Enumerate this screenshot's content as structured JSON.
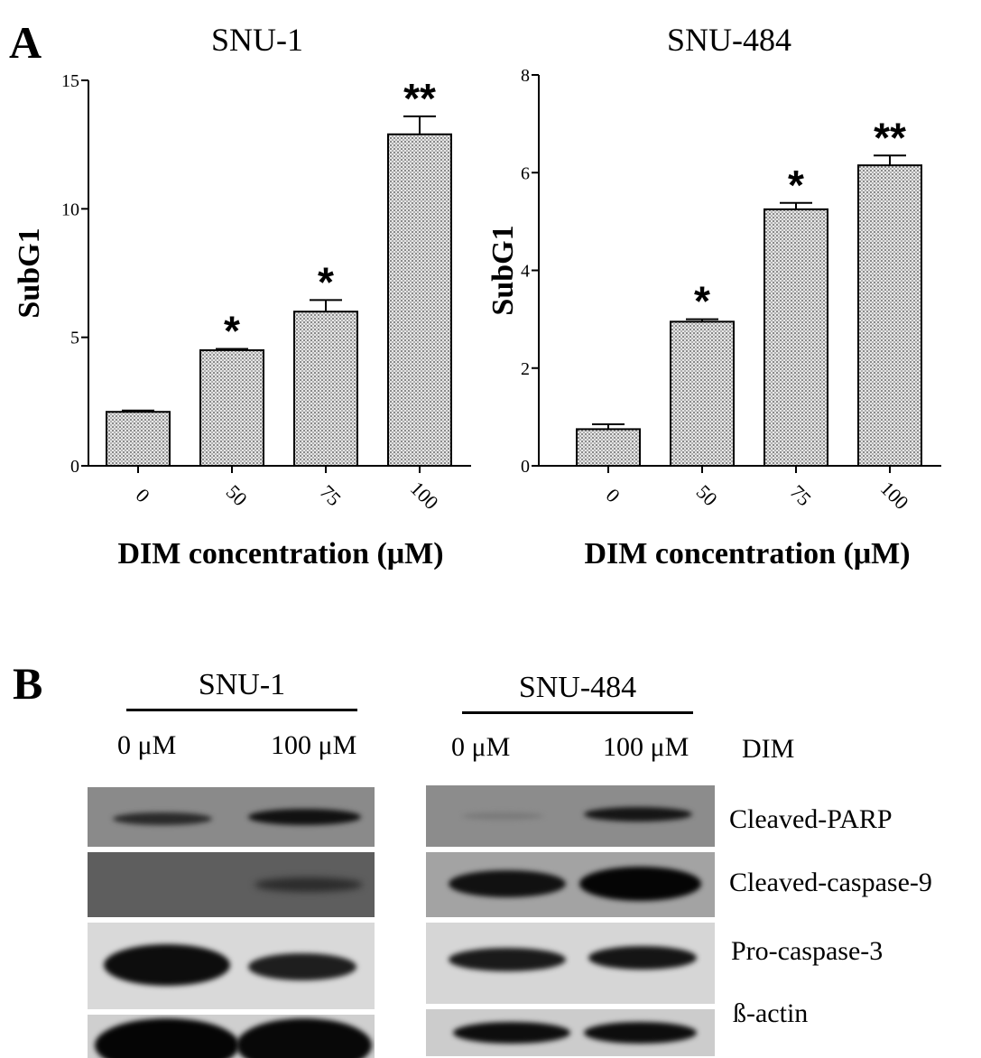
{
  "panel_labels": {
    "a": "A",
    "b": "B"
  },
  "chart_data": [
    {
      "type": "bar",
      "title": "SNU-1",
      "xlabel": "DIM concentration (μM)",
      "ylabel": "SubG1",
      "categories": [
        "0",
        "50",
        "75",
        "100"
      ],
      "values": [
        2.1,
        4.5,
        6.0,
        12.9
      ],
      "errors": [
        0.05,
        0.05,
        0.45,
        0.7
      ],
      "significance": [
        "",
        "*",
        "*",
        "**"
      ],
      "ylim": [
        0,
        15
      ],
      "yticks": [
        0,
        5,
        10,
        15
      ],
      "grid": false,
      "bar_color": "#9a9a9a"
    },
    {
      "type": "bar",
      "title": "SNU-484",
      "xlabel": "DIM concentration (μM)",
      "ylabel": "SubG1",
      "categories": [
        "0",
        "50",
        "75",
        "100"
      ],
      "values": [
        0.75,
        2.95,
        5.25,
        6.15
      ],
      "errors": [
        0.1,
        0.05,
        0.13,
        0.2
      ],
      "significance": [
        "",
        "*",
        "*",
        "**"
      ],
      "ylim": [
        0,
        8
      ],
      "yticks": [
        0,
        2,
        4,
        6,
        8
      ],
      "grid": false,
      "bar_color": "#9a9a9a"
    }
  ],
  "western_blot": {
    "groups": [
      {
        "cell_line": "SNU-1",
        "lanes": [
          "0 μM",
          "100 μM"
        ]
      },
      {
        "cell_line": "SNU-484",
        "lanes": [
          "0 μM",
          "100 μM"
        ]
      }
    ],
    "treatment_label": "DIM",
    "rows": [
      "Cleaved-PARP",
      "Cleaved-caspase-9",
      "Pro-caspase-3",
      "ß-actin"
    ]
  }
}
